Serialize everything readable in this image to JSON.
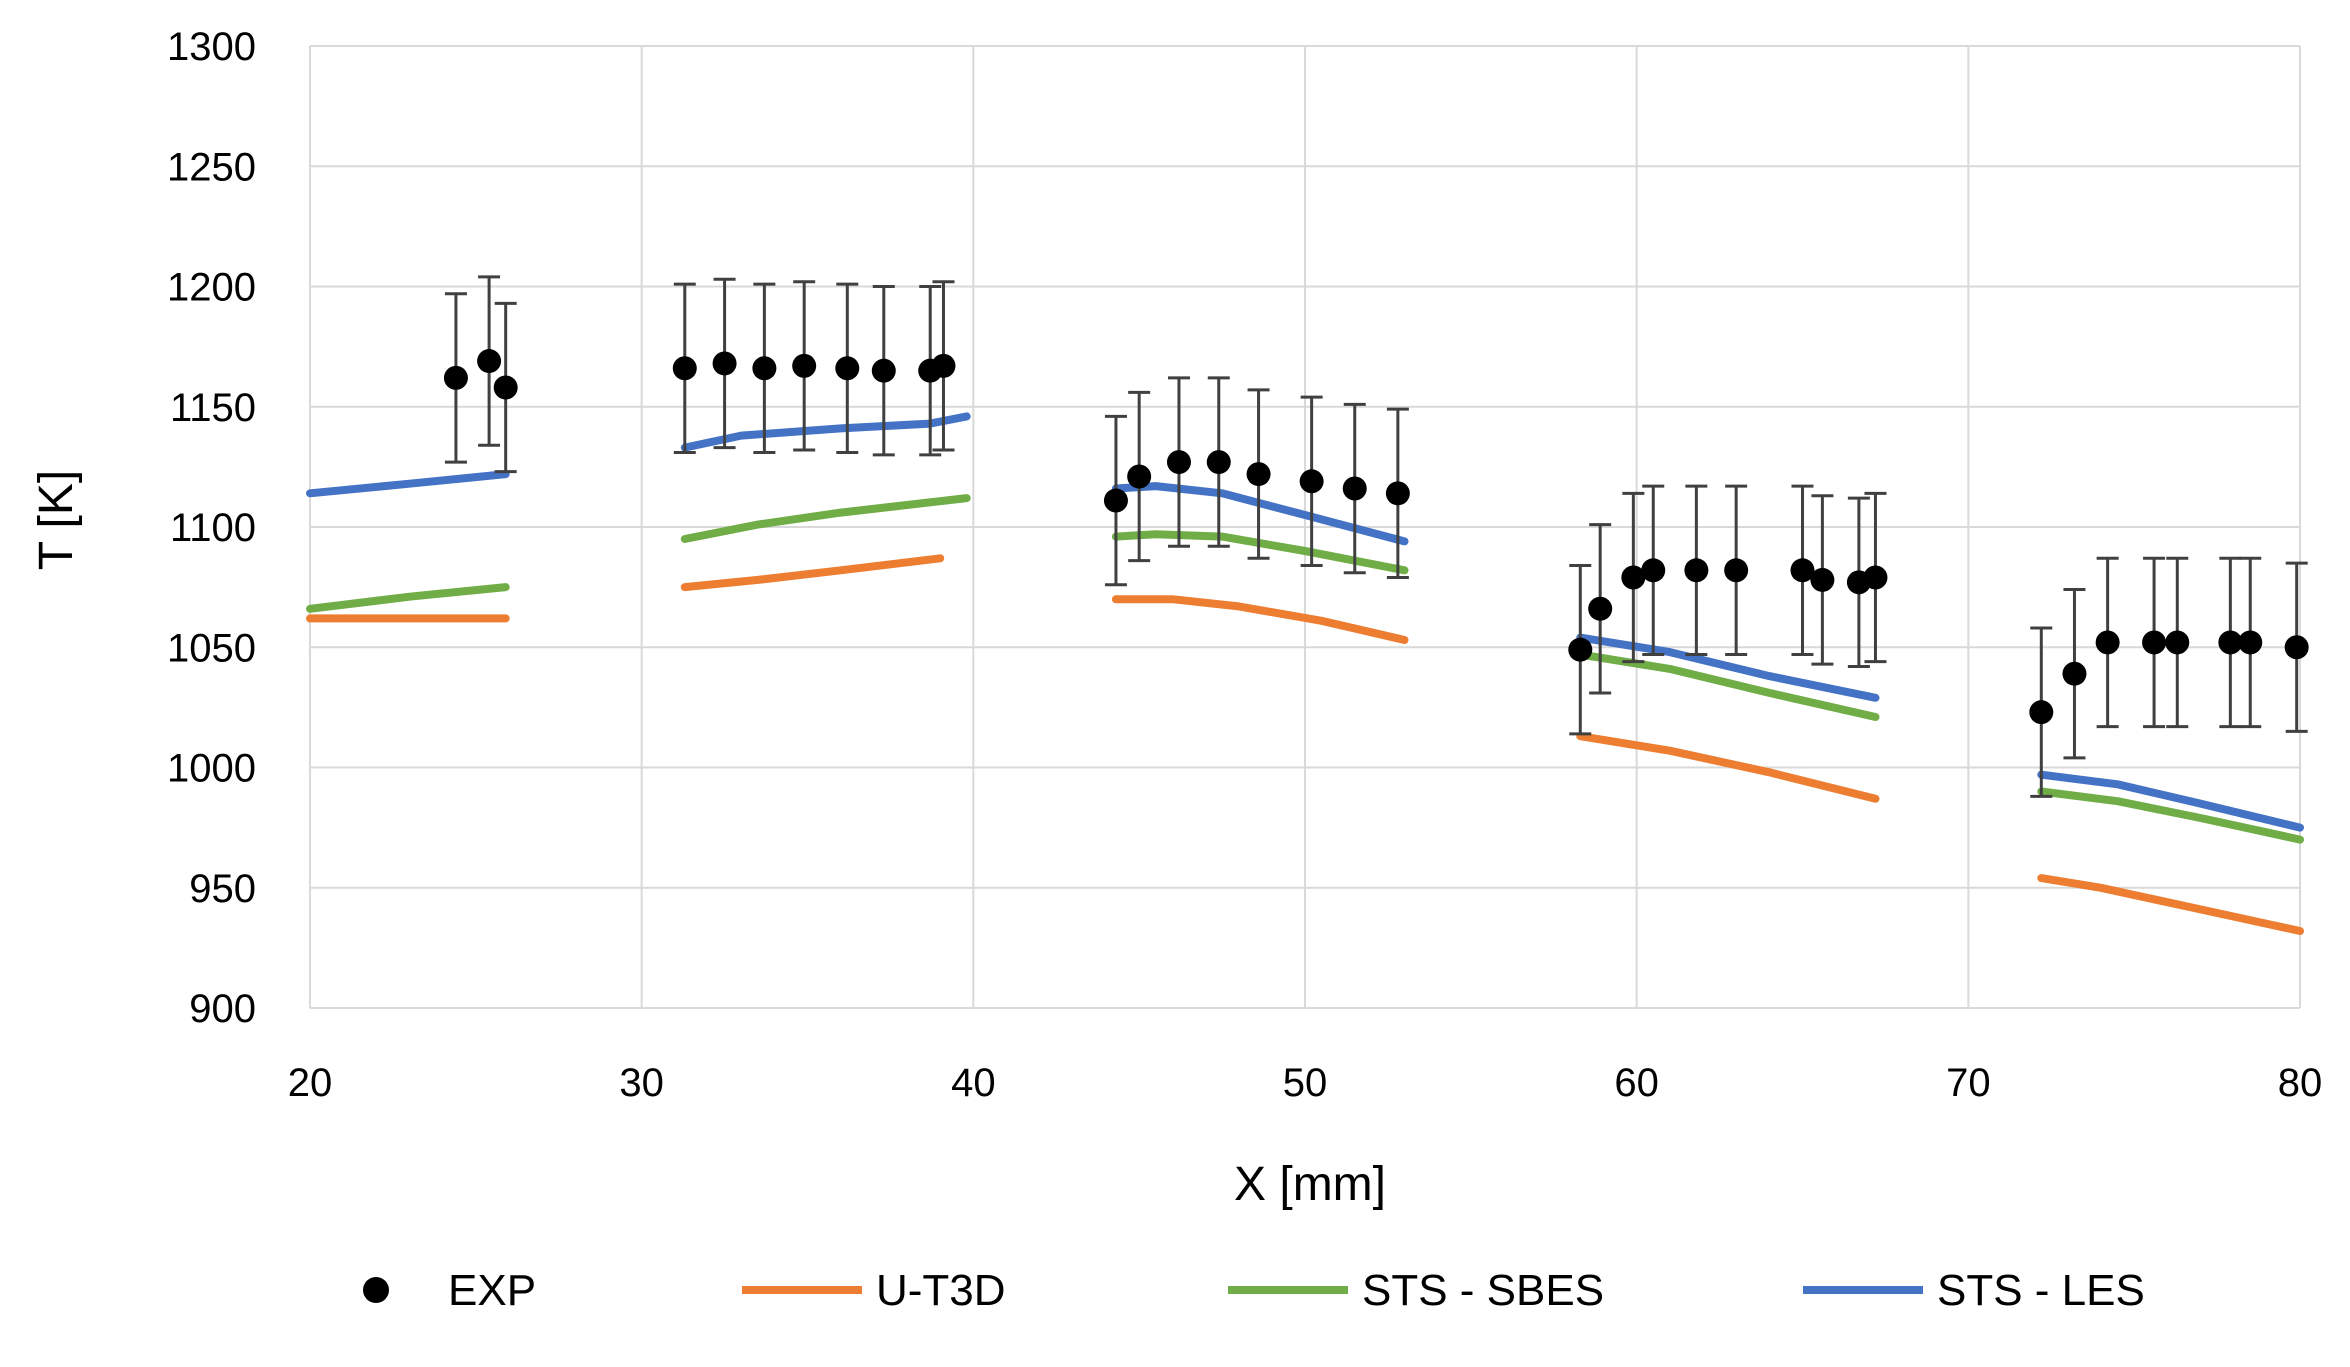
{
  "chart_data": {
    "type": "line",
    "title": "",
    "xlabel": "X [mm]",
    "ylabel": "T [K]",
    "xlim": [
      20,
      80
    ],
    "ylim": [
      900,
      1300
    ],
    "xticks": [
      "20",
      "30",
      "40",
      "50",
      "60",
      "70",
      "80"
    ],
    "yticks": [
      "900",
      "950",
      "1000",
      "1050",
      "1100",
      "1150",
      "1200",
      "1250",
      "1300"
    ],
    "grid": true,
    "legend_position": "bottom",
    "colors": {
      "EXP": "#000000",
      "U-T3D": "#ED7D31",
      "STS - SBES": "#70AD47",
      "STS - LES": "#4472C4",
      "errorbar": "#404040",
      "grid": "#D9D9D9"
    },
    "legend": [
      "EXP",
      "U-T3D",
      "STS - SBES",
      "STS - LES"
    ],
    "exp": {
      "name": "EXP",
      "error": 35,
      "points": [
        [
          24.4,
          1162
        ],
        [
          25.4,
          1169
        ],
        [
          25.9,
          1158
        ],
        [
          31.3,
          1166
        ],
        [
          32.5,
          1168
        ],
        [
          33.7,
          1166
        ],
        [
          34.9,
          1167
        ],
        [
          36.2,
          1166
        ],
        [
          37.3,
          1165
        ],
        [
          38.7,
          1165
        ],
        [
          39.1,
          1167
        ],
        [
          44.3,
          1111
        ],
        [
          45.0,
          1121
        ],
        [
          46.2,
          1127
        ],
        [
          47.4,
          1127
        ],
        [
          48.6,
          1122
        ],
        [
          50.2,
          1119
        ],
        [
          51.5,
          1116
        ],
        [
          52.8,
          1114
        ],
        [
          58.3,
          1049
        ],
        [
          58.9,
          1066
        ],
        [
          59.9,
          1079
        ],
        [
          60.5,
          1082
        ],
        [
          61.8,
          1082
        ],
        [
          63.0,
          1082
        ],
        [
          65.0,
          1082
        ],
        [
          65.6,
          1078
        ],
        [
          66.7,
          1077
        ],
        [
          67.2,
          1079
        ],
        [
          72.2,
          1023
        ],
        [
          73.2,
          1039
        ],
        [
          74.2,
          1052
        ],
        [
          75.6,
          1052
        ],
        [
          76.3,
          1052
        ],
        [
          77.9,
          1052
        ],
        [
          78.5,
          1052
        ],
        [
          79.9,
          1050
        ]
      ]
    },
    "series": [
      {
        "name": "U-T3D",
        "segments": [
          [
            [
              20.0,
              1062
            ],
            [
              23.0,
              1062
            ],
            [
              25.9,
              1062
            ]
          ],
          [
            [
              31.3,
              1075
            ],
            [
              33.5,
              1078
            ],
            [
              36.0,
              1082
            ],
            [
              39.0,
              1087
            ]
          ],
          [
            [
              44.3,
              1070
            ],
            [
              46.0,
              1070
            ],
            [
              48.0,
              1067
            ],
            [
              50.5,
              1061
            ],
            [
              53.0,
              1053
            ]
          ],
          [
            [
              58.3,
              1013
            ],
            [
              61.0,
              1007
            ],
            [
              64.0,
              998
            ],
            [
              67.2,
              987
            ]
          ],
          [
            [
              72.2,
              954
            ],
            [
              74.0,
              950
            ],
            [
              77.0,
              941
            ],
            [
              80.0,
              932
            ]
          ]
        ]
      },
      {
        "name": "STS - SBES",
        "segments": [
          [
            [
              20.0,
              1066
            ],
            [
              23.0,
              1071
            ],
            [
              25.9,
              1075
            ]
          ],
          [
            [
              31.3,
              1095
            ],
            [
              33.5,
              1101
            ],
            [
              36.0,
              1106
            ],
            [
              39.8,
              1112
            ]
          ],
          [
            [
              44.3,
              1096
            ],
            [
              45.5,
              1097
            ],
            [
              47.5,
              1096
            ],
            [
              50.0,
              1090
            ],
            [
              53.0,
              1082
            ]
          ],
          [
            [
              58.3,
              1047
            ],
            [
              61.0,
              1041
            ],
            [
              64.0,
              1031
            ],
            [
              67.2,
              1021
            ]
          ],
          [
            [
              72.2,
              990
            ],
            [
              74.5,
              986
            ],
            [
              77.0,
              979
            ],
            [
              80.0,
              970
            ]
          ]
        ]
      },
      {
        "name": "STS - LES",
        "segments": [
          [
            [
              20.0,
              1114
            ],
            [
              23.0,
              1118
            ],
            [
              25.9,
              1122
            ]
          ],
          [
            [
              31.3,
              1133
            ],
            [
              33.0,
              1138
            ],
            [
              36.0,
              1141
            ],
            [
              38.7,
              1143
            ],
            [
              39.8,
              1146
            ]
          ],
          [
            [
              44.3,
              1116
            ],
            [
              45.5,
              1117
            ],
            [
              47.5,
              1114
            ],
            [
              50.0,
              1105
            ],
            [
              53.0,
              1094
            ]
          ],
          [
            [
              58.3,
              1054
            ],
            [
              61.0,
              1048
            ],
            [
              64.0,
              1038
            ],
            [
              67.2,
              1029
            ]
          ],
          [
            [
              72.2,
              997
            ],
            [
              74.5,
              993
            ],
            [
              77.0,
              985
            ],
            [
              80.0,
              975
            ]
          ]
        ]
      }
    ]
  }
}
